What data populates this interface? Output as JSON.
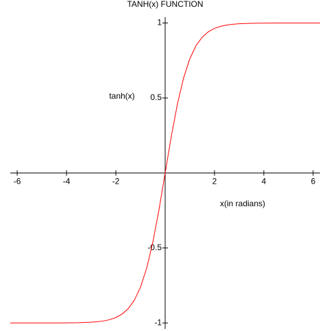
{
  "chart_data": {
    "type": "line",
    "title": "TANH(x) FUNCTION",
    "x_label": "x(in radians)",
    "y_label": "tanh(x)",
    "xlim": [
      -6.28,
      6.28
    ],
    "ylim": [
      -1.04,
      1.03
    ],
    "xticks": [
      -6,
      -4,
      -2,
      2,
      4,
      6
    ],
    "yticks": [
      -1,
      -0.5,
      0.5,
      1
    ],
    "x": [
      -6.28,
      -6,
      -5.5,
      -5,
      -4.5,
      -4,
      -3.5,
      -3,
      -2.75,
      -2.5,
      -2.25,
      -2,
      -1.75,
      -1.5,
      -1.25,
      -1,
      -0.75,
      -0.5,
      -0.25,
      0,
      0.25,
      0.5,
      0.75,
      1,
      1.25,
      1.5,
      1.75,
      2,
      2.25,
      2.5,
      2.75,
      3,
      3.5,
      4,
      4.5,
      5,
      5.5,
      6,
      6.28
    ],
    "series": [
      {
        "name": "tanh(x)",
        "color": "#ff0000",
        "values": [
          -1.0,
          -1.0,
          -1.0,
          -0.9999,
          -0.9998,
          -0.9993,
          -0.9982,
          -0.9951,
          -0.9919,
          -0.9866,
          -0.978,
          -0.964,
          -0.9414,
          -0.9051,
          -0.8483,
          -0.7616,
          -0.6351,
          -0.4621,
          -0.2449,
          0,
          0.2449,
          0.4621,
          0.6351,
          0.7616,
          0.8483,
          0.9051,
          0.9414,
          0.964,
          0.978,
          0.9866,
          0.9919,
          0.9951,
          0.9982,
          0.9993,
          0.9998,
          0.9999,
          1.0,
          1.0,
          1.0
        ]
      }
    ]
  }
}
